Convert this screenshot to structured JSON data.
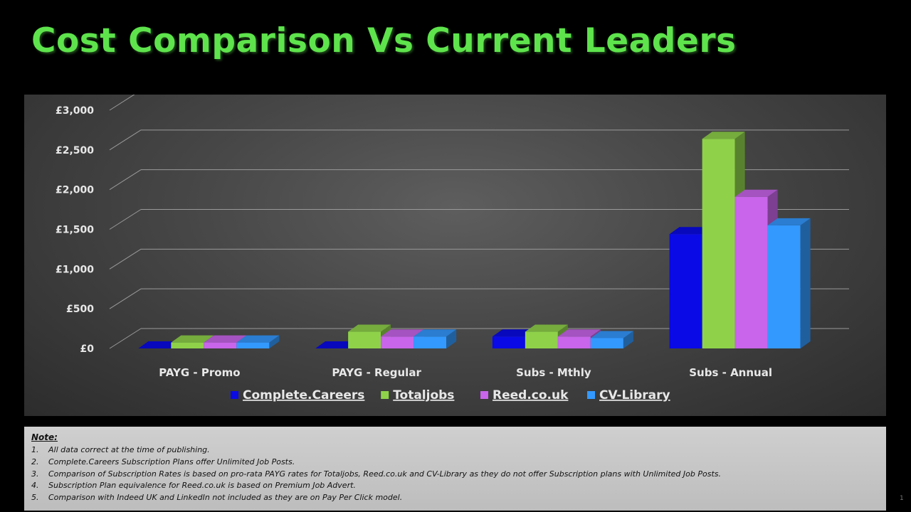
{
  "title": "Cost Comparison Vs Current Leaders",
  "chart_data": {
    "type": "bar",
    "categories": [
      "PAYG - Promo",
      "PAYG - Regular",
      "Subs - Mthly",
      "Subs - Annual"
    ],
    "series": [
      {
        "name": "Complete.Careers",
        "color": "#0a0ae6",
        "values": [
          0,
          0,
          150,
          1440
        ]
      },
      {
        "name": "Totaljobs",
        "color": "#8fd24a",
        "values": [
          75,
          210,
          210,
          2640
        ]
      },
      {
        "name": "Reed.co.uk",
        "color": "#c865ea",
        "values": [
          75,
          150,
          150,
          1910
        ]
      },
      {
        "name": "CV-Library",
        "color": "#3399ff",
        "values": [
          75,
          150,
          130,
          1550
        ]
      }
    ],
    "ytick_labels": [
      "£0",
      "£500",
      "£1,000",
      "£1,500",
      "£2,000",
      "£2,500",
      "£3,000"
    ],
    "ylim": [
      0,
      3000
    ],
    "grid": true,
    "legend": "bottom",
    "xlabel": "",
    "ylabel": ""
  },
  "notes": {
    "heading": "Note:",
    "items": [
      {
        "num": "1.",
        "text": "All data correct at the time of publishing."
      },
      {
        "num": "2.",
        "text": "Complete.Careers Subscription Plans offer Unlimited Job Posts."
      },
      {
        "num": "3.",
        "text": "Comparison of Subscription Rates is based on pro-rata PAYG rates for Totaljobs, Reed.co.uk and CV-Library as they do not offer Subscription plans with Unlimited Job Posts."
      },
      {
        "num": "4.",
        "text": "Subscription Plan equivalence for Reed.co.uk is based on Premium Job Advert."
      },
      {
        "num": "5.",
        "text": "Comparison with Indeed UK and LinkedIn not included as they are on Pay Per Click model."
      }
    ]
  },
  "page_number": "1"
}
